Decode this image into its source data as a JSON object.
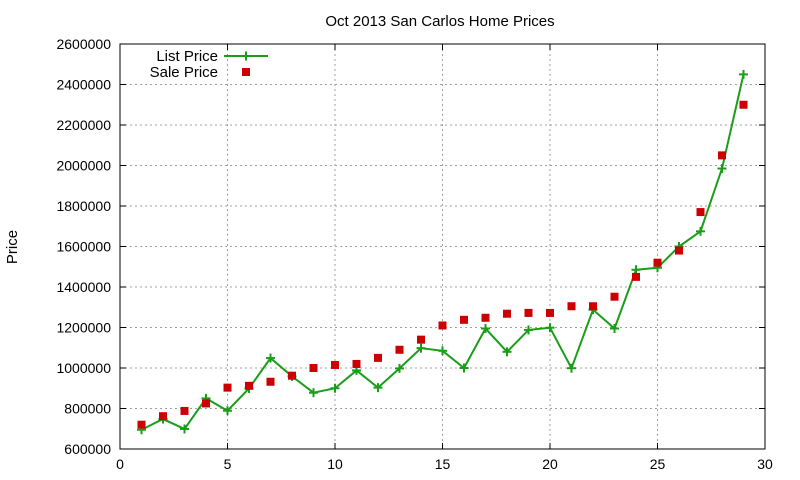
{
  "chart_data": {
    "type": "scatter",
    "title": "Oct 2013 San Carlos Home Prices",
    "xlabel": "",
    "ylabel": "Price",
    "xlim": [
      0,
      30
    ],
    "ylim": [
      600000,
      2600000
    ],
    "x_ticks": [
      0,
      5,
      10,
      15,
      20,
      25,
      30
    ],
    "y_ticks": [
      600000,
      800000,
      1000000,
      1200000,
      1400000,
      1600000,
      1800000,
      2000000,
      2200000,
      2400000,
      2600000
    ],
    "grid": true,
    "legend_position": "top-left",
    "x": [
      1,
      2,
      3,
      4,
      5,
      6,
      7,
      8,
      9,
      10,
      11,
      12,
      13,
      14,
      15,
      16,
      17,
      18,
      19,
      20,
      21,
      22,
      23,
      24,
      25,
      26,
      27,
      28,
      29
    ],
    "series": [
      {
        "name": "List Price",
        "style": "linespoints",
        "color": "#1a9e1a",
        "values": [
          695000,
          748000,
          699000,
          850000,
          789000,
          899000,
          1049000,
          959000,
          878000,
          900000,
          988000,
          903000,
          998000,
          1098000,
          1085000,
          1000000,
          1195000,
          1080000,
          1188000,
          1199000,
          999000,
          1288000,
          1195000,
          1485000,
          1495000,
          1600000,
          1675000,
          1985000,
          2450000
        ]
      },
      {
        "name": "Sale Price",
        "style": "points",
        "color": "#cc0000",
        "values": [
          720000,
          762000,
          788000,
          825000,
          903000,
          912000,
          932000,
          962000,
          1000000,
          1015000,
          1020000,
          1050000,
          1090000,
          1140000,
          1210000,
          1238000,
          1248000,
          1268000,
          1272000,
          1272000,
          1305000,
          1305000,
          1352000,
          1450000,
          1520000,
          1580000,
          1770000,
          2050000,
          2300000
        ]
      }
    ]
  }
}
